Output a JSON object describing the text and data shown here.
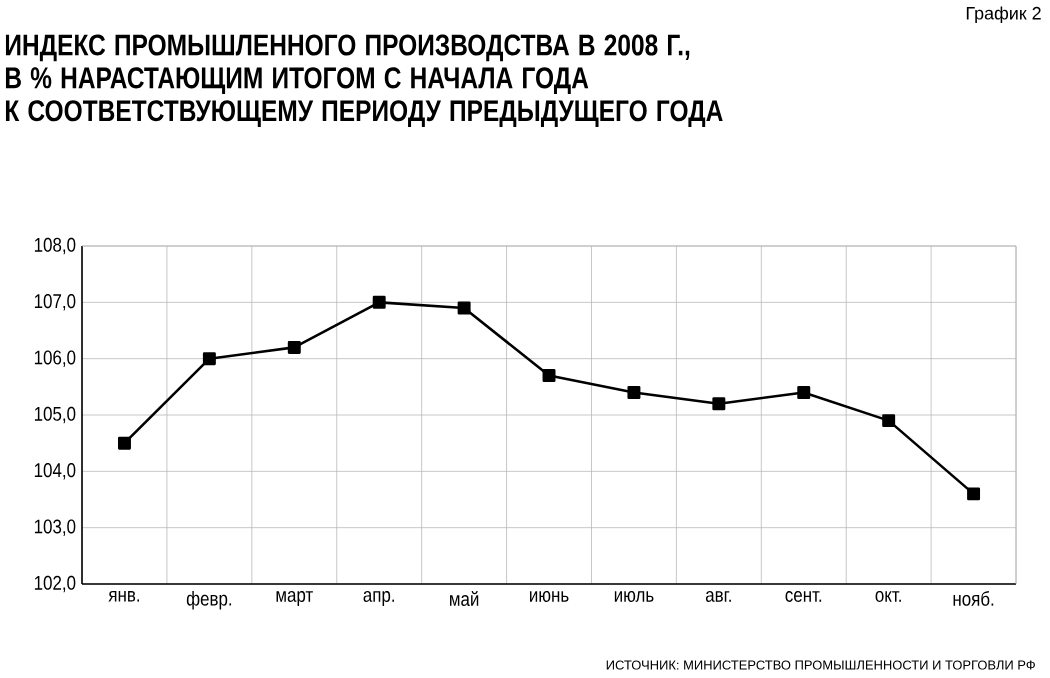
{
  "chart_data": {
    "type": "line",
    "title": "ИНДЕКС ПРОМЫШЛЕННОГО ПРОИЗВОДСТВА В 2008 Г.,\nВ % НАРАСТАЮЩИМ ИТОГОМ С НАЧАЛА ГОДА\nК СООТВЕТСТВУЮЩЕМУ ПЕРИОДУ ПРЕДЫДУЩЕГО ГОДА",
    "annotations": [
      "График 2",
      "ИСТОЧНИК: МИНИСТЕРСТВО ПРОМЫШЛЕННОСТИ И ТОРГОВЛИ РФ"
    ],
    "categories": [
      "янв.",
      "февр.",
      "март",
      "апр.",
      "май",
      "июнь",
      "июль",
      "авг.",
      "сент.",
      "окт.",
      "нояб."
    ],
    "series": [
      {
        "color": "#000000",
        "values": [
          104.5,
          106.0,
          106.2,
          107.0,
          106.9,
          105.7,
          105.4,
          105.2,
          105.4,
          104.9,
          103.6
        ]
      }
    ],
    "ylim": [
      102,
      108
    ],
    "yticks": [
      {
        "value": 102,
        "label": "102,0"
      },
      {
        "value": 103,
        "label": "103,0"
      },
      {
        "value": 104,
        "label": "104,0"
      },
      {
        "value": 105,
        "label": "105,0"
      },
      {
        "value": 106,
        "label": "106,0"
      },
      {
        "value": 107,
        "label": "107,0"
      },
      {
        "value": 108,
        "label": "108,0"
      }
    ],
    "grid": true,
    "marker": "square",
    "line_style": "solid"
  }
}
